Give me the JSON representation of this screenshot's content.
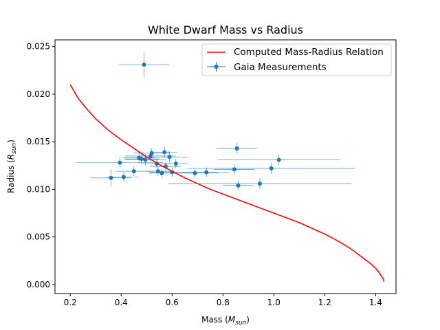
{
  "chart_data": {
    "type": "scatter",
    "title": "White Dwarf Mass vs Radius",
    "xlabel": {
      "base": "Mass (",
      "var": "M",
      "sub": "sun",
      "tail": ")"
    },
    "ylabel": {
      "base": "Radius (",
      "var": "R",
      "sub": "sun",
      "tail": ")"
    },
    "xlim": [
      0.14,
      1.48
    ],
    "ylim": [
      -0.00095,
      0.0257
    ],
    "xticks": [
      0.2,
      0.4,
      0.6,
      0.8,
      1.0,
      1.2,
      1.4
    ],
    "xtick_labels": [
      "0.2",
      "0.4",
      "0.6",
      "0.8",
      "1.0",
      "1.2",
      "1.4"
    ],
    "yticks": [
      0.0,
      0.005,
      0.01,
      0.015,
      0.02,
      0.025
    ],
    "ytick_labels": [
      "0.000",
      "0.005",
      "0.010",
      "0.015",
      "0.020",
      "0.025"
    ],
    "grid": false,
    "legend_position": "top-right",
    "series": [
      {
        "name": "Computed Mass-Radius Relation",
        "kind": "line",
        "color": "#ff0000",
        "x": [
          0.2,
          0.23,
          0.26,
          0.3,
          0.35,
          0.4,
          0.45,
          0.5,
          0.55,
          0.6,
          0.65,
          0.7,
          0.75,
          0.8,
          0.85,
          0.9,
          0.95,
          1.0,
          1.05,
          1.1,
          1.15,
          1.2,
          1.25,
          1.3,
          1.35,
          1.38,
          1.4,
          1.41,
          1.42,
          1.43,
          1.432
        ],
        "y": [
          0.021,
          0.0196,
          0.0186,
          0.0174,
          0.0162,
          0.0152,
          0.0143,
          0.0134,
          0.0126,
          0.0119,
          0.0112,
          0.0106,
          0.01,
          0.0095,
          0.009,
          0.0085,
          0.008,
          0.0075,
          0.007,
          0.0065,
          0.0059,
          0.0053,
          0.0046,
          0.0038,
          0.0028,
          0.0022,
          0.0017,
          0.0014,
          0.001,
          0.0006,
          0.0003
        ]
      },
      {
        "name": "Gaia Measurements",
        "kind": "errorbar",
        "color": "#1f77b4",
        "points": [
          {
            "x": 0.49,
            "y": 0.0231,
            "xerr": 0.1,
            "yerr": 0.0014
          },
          {
            "x": 0.36,
            "y": 0.0112,
            "xerr": 0.08,
            "yerr": 0.0009
          },
          {
            "x": 0.41,
            "y": 0.0113,
            "xerr": 0.06,
            "yerr": 0.0005
          },
          {
            "x": 0.395,
            "y": 0.0128,
            "xerr": 0.17,
            "yerr": 0.0006
          },
          {
            "x": 0.45,
            "y": 0.0119,
            "xerr": 0.07,
            "yerr": 0.0005
          },
          {
            "x": 0.47,
            "y": 0.0133,
            "xerr": 0.06,
            "yerr": 0.0006
          },
          {
            "x": 0.48,
            "y": 0.0132,
            "xerr": 0.07,
            "yerr": 0.0005
          },
          {
            "x": 0.495,
            "y": 0.0131,
            "xerr": 0.08,
            "yerr": 0.0006
          },
          {
            "x": 0.515,
            "y": 0.0135,
            "xerr": 0.1,
            "yerr": 0.0006
          },
          {
            "x": 0.52,
            "y": 0.0138,
            "xerr": 0.07,
            "yerr": 0.0005
          },
          {
            "x": 0.54,
            "y": 0.0127,
            "xerr": 0.06,
            "yerr": 0.0005
          },
          {
            "x": 0.545,
            "y": 0.0119,
            "xerr": 0.05,
            "yerr": 0.0005
          },
          {
            "x": 0.56,
            "y": 0.0117,
            "xerr": 0.05,
            "yerr": 0.0005
          },
          {
            "x": 0.57,
            "y": 0.0139,
            "xerr": 0.05,
            "yerr": 0.0006
          },
          {
            "x": 0.575,
            "y": 0.0124,
            "xerr": 0.06,
            "yerr": 0.0005
          },
          {
            "x": 0.59,
            "y": 0.0134,
            "xerr": 0.07,
            "yerr": 0.0006
          },
          {
            "x": 0.6,
            "y": 0.0118,
            "xerr": 0.09,
            "yerr": 0.0005
          },
          {
            "x": 0.615,
            "y": 0.0127,
            "xerr": 0.05,
            "yerr": 0.0005
          },
          {
            "x": 0.69,
            "y": 0.0117,
            "xerr": 0.09,
            "yerr": 0.0005
          },
          {
            "x": 0.735,
            "y": 0.0118,
            "xerr": 0.09,
            "yerr": 0.0005
          },
          {
            "x": 0.845,
            "y": 0.0121,
            "xerr": 0.08,
            "yerr": 0.0006
          },
          {
            "x": 0.855,
            "y": 0.0143,
            "xerr": 0.08,
            "yerr": 0.0006
          },
          {
            "x": 0.86,
            "y": 0.0104,
            "xerr": 0.06,
            "yerr": 0.0005
          },
          {
            "x": 0.945,
            "y": 0.0106,
            "xerr": 0.36,
            "yerr": 0.0006
          },
          {
            "x": 0.99,
            "y": 0.0122,
            "xerr": 0.33,
            "yerr": 0.0006
          },
          {
            "x": 1.02,
            "y": 0.0131,
            "xerr": 0.24,
            "yerr": 0.0006
          }
        ]
      }
    ]
  }
}
